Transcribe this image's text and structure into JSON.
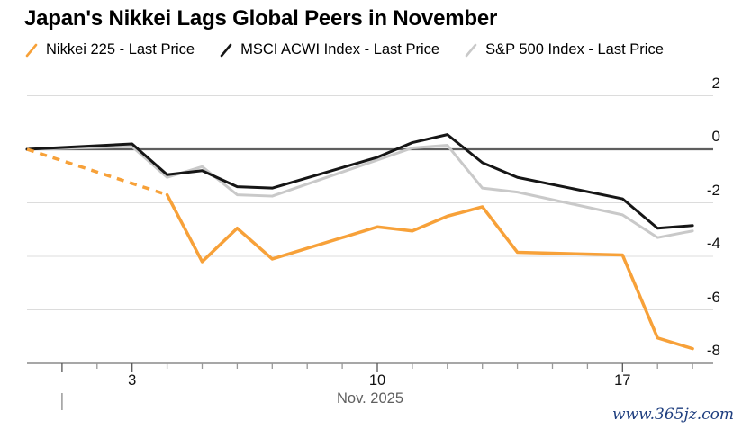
{
  "header": {
    "title": "Japan's Nikkei Lags Global Peers in November"
  },
  "legend": {
    "items": [
      {
        "label": "Nikkei 225 - Last Price",
        "color": "#F7A139"
      },
      {
        "label": "MSCI ACWI Index - Last Price",
        "color": "#161616"
      },
      {
        "label": "S&P 500 Index - Last Price",
        "color": "#C9C9C9"
      }
    ]
  },
  "watermark": {
    "text": "www.365jz.com",
    "color": "#1E3E7F"
  },
  "chart_data": {
    "type": "line",
    "title": "Japan's Nikkei Lags Global Peers in November",
    "x_axis": {
      "month_label": "Nov. 2025",
      "unit": "calendar day of November (0 = pre-month baseline)",
      "tick_days": [
        1,
        2,
        3,
        4,
        5,
        6,
        7,
        8,
        9,
        10,
        11,
        12,
        13,
        14,
        15,
        16,
        17,
        18,
        19
      ],
      "major_tick_days": [
        1,
        3,
        10,
        17
      ],
      "labeled_ticks": [
        {
          "day": 3,
          "label": "3"
        },
        {
          "day": 10,
          "label": "10"
        },
        {
          "day": 17,
          "label": "17"
        }
      ],
      "month_start_day": 1
    },
    "y_axis": {
      "unit": "% change",
      "ticks": [
        2,
        0,
        -2,
        -4,
        -6,
        -8
      ],
      "range": [
        -8,
        2
      ],
      "zero_line": true,
      "grid": true
    },
    "legend_position": "top-left",
    "series": [
      {
        "name": "S&P 500 Index - Last Price",
        "color": "#C9C9C9",
        "width": 3,
        "points": [
          [
            0,
            0
          ],
          [
            3,
            0.1
          ],
          [
            4,
            -1.05
          ],
          [
            5,
            -0.65
          ],
          [
            6,
            -1.7
          ],
          [
            7,
            -1.75
          ],
          [
            10,
            -0.4
          ],
          [
            11,
            0.05
          ],
          [
            12,
            0.15
          ],
          [
            13,
            -1.45
          ],
          [
            14,
            -1.6
          ],
          [
            17,
            -2.45
          ],
          [
            18,
            -3.3
          ],
          [
            19,
            -3.05
          ]
        ]
      },
      {
        "name": "MSCI ACWI Index - Last Price",
        "color": "#161616",
        "width": 3,
        "points": [
          [
            0,
            0
          ],
          [
            3,
            0.2
          ],
          [
            4,
            -0.95
          ],
          [
            5,
            -0.8
          ],
          [
            6,
            -1.4
          ],
          [
            7,
            -1.45
          ],
          [
            10,
            -0.3
          ],
          [
            11,
            0.25
          ],
          [
            12,
            0.55
          ],
          [
            13,
            -0.5
          ],
          [
            14,
            -1.05
          ],
          [
            17,
            -1.85
          ],
          [
            18,
            -2.95
          ],
          [
            19,
            -2.85
          ]
        ]
      },
      {
        "name": "Nikkei 225 - Last Price",
        "color": "#F7A139",
        "width": 3.5,
        "dash_until_day": 4,
        "points": [
          [
            0,
            0
          ],
          [
            4,
            -1.7
          ],
          [
            5,
            -4.2
          ],
          [
            6,
            -2.95
          ],
          [
            7,
            -4.1
          ],
          [
            10,
            -2.9
          ],
          [
            11,
            -3.05
          ],
          [
            12,
            -2.5
          ],
          [
            13,
            -2.15
          ],
          [
            14,
            -3.85
          ],
          [
            17,
            -3.95
          ],
          [
            18,
            -7.05
          ],
          [
            19,
            -7.45
          ]
        ]
      }
    ]
  }
}
